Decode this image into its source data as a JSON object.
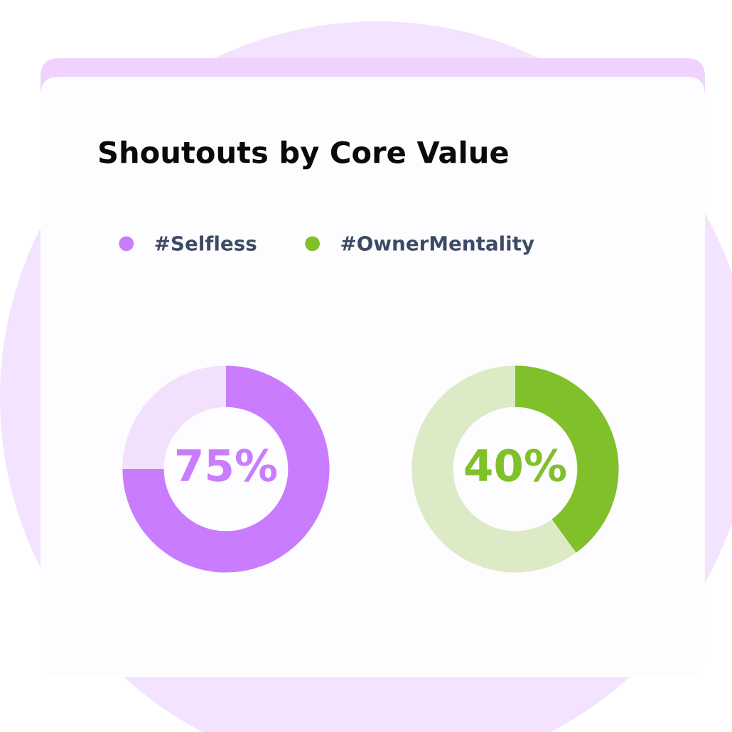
{
  "chart_data": [
    {
      "type": "donut",
      "title": "Shoutouts by Core Value",
      "categories": [
        "#Selfless",
        null
      ],
      "values": [
        75,
        25
      ],
      "colors": [
        "#c97cfd",
        "#f3e0fd"
      ],
      "value_labels": [
        "75%",
        null
      ],
      "legend": "top"
    },
    {
      "type": "donut",
      "categories": [
        "#OwnerMentality",
        null
      ],
      "values": [
        40,
        60
      ],
      "colors": [
        "#80c02a",
        "#dcebc6"
      ],
      "value_labels": [
        "40%",
        null
      ],
      "legend": "top"
    }
  ]
}
